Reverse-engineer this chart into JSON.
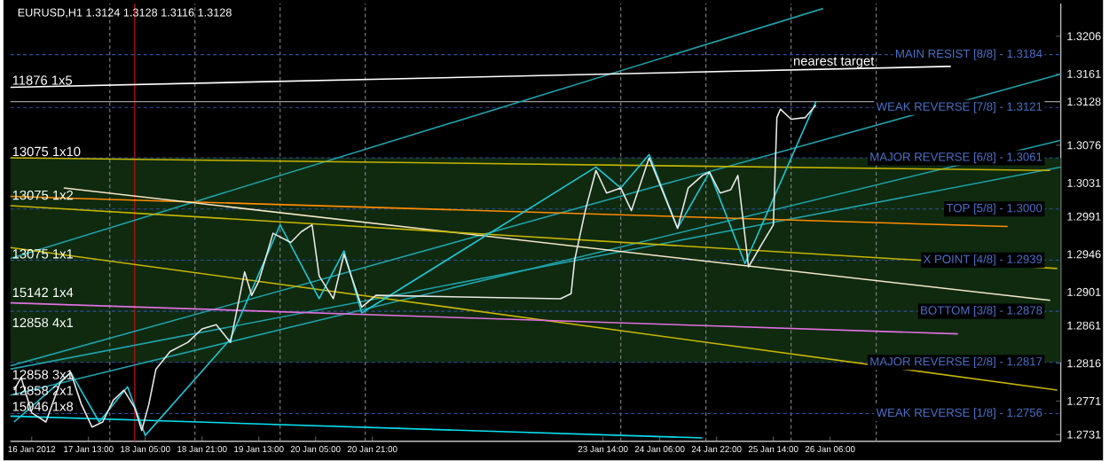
{
  "chart_data": {
    "type": "line",
    "title": "EURUSD,H1  1.3124 1.3128 1.3116 1.3128",
    "xlim": [
      "2012-01-16T15:00",
      "2012-01-28T23:00"
    ],
    "ylim": [
      1.2723,
      1.3245
    ],
    "xticks": [
      {
        "value": "2012-01-16T21:00",
        "label": "16 Jan 2012"
      },
      {
        "value": "2012-01-17T13:00",
        "label": "17 Jan 13:00"
      },
      {
        "value": "2012-01-18T05:00",
        "label": "18 Jan 05:00"
      },
      {
        "value": "2012-01-18T21:00",
        "label": "18 Jan 21:00"
      },
      {
        "value": "2012-01-19T13:00",
        "label": "19 Jan 13:00"
      },
      {
        "value": "2012-01-20T05:00",
        "label": "20 Jan 05:00"
      },
      {
        "value": "2012-01-20T21:00",
        "label": "20 Jan 21:00"
      },
      {
        "value": "2012-01-23T14:00",
        "label": "23 Jan 14:00"
      },
      {
        "value": "2012-01-24T06:00",
        "label": "24 Jan 06:00"
      },
      {
        "value": "2012-01-24T22:00",
        "label": "24 Jan 22:00"
      },
      {
        "value": "2012-01-25T14:00",
        "label": "25 Jan 14:00"
      },
      {
        "value": "2012-01-26T06:00",
        "label": "26 Jan 06:00"
      }
    ],
    "yticks": [
      1.3206,
      1.3161,
      1.3128,
      1.3076,
      1.3031,
      1.2991,
      1.2946,
      1.2901,
      1.2861,
      1.2816,
      1.2771,
      1.2731
    ],
    "bands": [
      {
        "axis": "y",
        "from": 1.2817,
        "to": 1.3061,
        "color": "#0f2a0f"
      }
    ],
    "ref_lines": [
      {
        "axis": "x",
        "value": "2012-01-17T19:00",
        "color": "#8c8c8c",
        "line_style": "dashed"
      },
      {
        "axis": "x",
        "value": "2012-01-18T19:00",
        "color": "#8c8c8c",
        "line_style": "dashed"
      },
      {
        "axis": "x",
        "value": "2012-01-19T19:00",
        "color": "#8c8c8c",
        "line_style": "dashed"
      },
      {
        "axis": "x",
        "value": "2012-01-20T19:00",
        "color": "#8c8c8c",
        "line_style": "dashed"
      },
      {
        "axis": "x",
        "value": "2012-01-23T19:00",
        "color": "#8c8c8c",
        "line_style": "dashed"
      },
      {
        "axis": "x",
        "value": "2012-01-24T19:00",
        "color": "#8c8c8c",
        "line_style": "dashed"
      },
      {
        "axis": "x",
        "value": "2012-01-25T19:00",
        "color": "#8c8c8c",
        "line_style": "dashed"
      },
      {
        "axis": "x",
        "value": "2012-01-26T19:00",
        "color": "#8c8c8c",
        "line_style": "dashed"
      },
      {
        "axis": "x",
        "value": "2012-01-18T02:00",
        "color": "#d01010",
        "line_style": "solid"
      },
      {
        "axis": "y",
        "value": 1.3128,
        "color": "#9a9a9a",
        "line_style": "solid"
      },
      {
        "axis": "y",
        "value": 1.3184,
        "label": "MAIN RESIST  [8/8] - 1.3184",
        "color": "#2f4f9f",
        "line_style": "dashed"
      },
      {
        "axis": "y",
        "value": 1.3121,
        "label": "WEAK REVERSE  [7/8] - 1.3121",
        "color": "#2f4f9f",
        "line_style": "dashed"
      },
      {
        "axis": "y",
        "value": 1.3061,
        "label": "MAJOR REVERSE  [6/8] - 1.3061",
        "color": "#2f4f9f",
        "line_style": "dashed"
      },
      {
        "axis": "y",
        "value": 1.3,
        "label": "TOP  [5/8] - 1.3000",
        "color": "#2f4f9f",
        "line_style": "dashed"
      },
      {
        "axis": "y",
        "value": 1.2939,
        "label": "X POINT  [4/8] - 1.2939",
        "color": "#2f4f9f",
        "line_style": "dashed"
      },
      {
        "axis": "y",
        "value": 1.2878,
        "label": "BOTTOM  [3/8] - 1.2878",
        "color": "#2f4f9f",
        "line_style": "dashed"
      },
      {
        "axis": "y",
        "value": 1.2817,
        "label": "MAJOR REVERSE  [2/8] - 1.2817",
        "color": "#2f4f9f",
        "line_style": "dashed"
      },
      {
        "axis": "y",
        "value": 1.2756,
        "label": "WEAK REVERSE  [1/8] - 1.2756",
        "color": "#2f4f9f",
        "line_style": "dashed"
      }
    ],
    "series": [
      {
        "color": "#1fa0a8",
        "x": [
          "2012-01-16T15:00",
          "2012-01-26T04:00"
        ],
        "values": [
          1.2941,
          1.3239
        ]
      },
      {
        "color": "#1fa0a8",
        "x": [
          "2012-01-16T15:00",
          "2012-01-28T23:00"
        ],
        "values": [
          1.2813,
          1.3161
        ]
      },
      {
        "color": "#1fa0a8",
        "x": [
          "2012-01-16T15:00",
          "2012-01-28T23:00"
        ],
        "values": [
          1.2778,
          1.3082
        ]
      },
      {
        "color": "#1fa0a8",
        "x": [
          "2012-01-16T15:00",
          "2012-01-28T23:00"
        ],
        "values": [
          1.2809,
          1.305
        ]
      },
      {
        "color": "#ffffff",
        "x": [
          "2012-01-16T15:00",
          "2012-01-27T16:00"
        ],
        "values": [
          1.3145,
          1.317
        ]
      },
      {
        "color": "#c8b400",
        "x": [
          "2012-01-16T15:00",
          "2012-01-28T20:00"
        ],
        "values": [
          1.3061,
          1.3046
        ]
      },
      {
        "color": "#ff8c00",
        "x": [
          "2012-01-16T15:00",
          "2012-01-28T08:00"
        ],
        "values": [
          1.3015,
          1.2979
        ]
      },
      {
        "color": "#f5e6c8",
        "x": [
          "2012-01-17T06:00",
          "2012-01-28T20:00"
        ],
        "values": [
          1.3025,
          1.2891
        ]
      },
      {
        "color": "#c8b400",
        "x": [
          "2012-01-16T15:00",
          "2012-01-28T22:00"
        ],
        "values": [
          1.2954,
          1.2784
        ]
      },
      {
        "color": "#c8b400",
        "x": [
          "2012-01-16T15:00",
          "2012-01-28T22:00"
        ],
        "values": [
          1.3004,
          1.2929
        ]
      },
      {
        "color": "#e070e0",
        "x": [
          "2012-01-16T15:00",
          "2012-01-27T18:00"
        ],
        "values": [
          1.2888,
          1.2851
        ]
      },
      {
        "color": "#00e0f0",
        "x": [
          "2012-01-16T15:00",
          "2012-01-24T18:00"
        ],
        "values": [
          1.2753,
          1.2727
        ]
      },
      {
        "color": "#20c8d8",
        "x": [
          "2012-01-16T16:00",
          "2012-01-17T08:00",
          "2012-01-17T16:00",
          "2012-01-18T00:00",
          "2012-01-18T05:00",
          "2012-01-19T05:00",
          "2012-01-19T19:00",
          "2012-01-20T06:00",
          "2012-01-20T13:00",
          "2012-01-20T18:00",
          "2012-01-23T12:00",
          "2012-01-23T19:00",
          "2012-01-24T03:00",
          "2012-01-24T11:00",
          "2012-01-24T20:00",
          "2012-01-25T06:00",
          "2012-01-26T02:00"
        ],
        "values": [
          1.2746,
          1.2805,
          1.2746,
          1.2788,
          1.273,
          1.2845,
          1.2981,
          1.2893,
          1.295,
          1.2876,
          1.305,
          1.3025,
          1.3065,
          1.2977,
          1.3044,
          1.2935,
          1.3128
        ]
      },
      {
        "color": "#e8e8e8",
        "x": [
          "2012-01-16T16:00",
          "2012-01-16T18:00",
          "2012-01-16T21:00",
          "2012-01-17T01:00",
          "2012-01-17T05:00",
          "2012-01-17T08:00",
          "2012-01-17T11:00",
          "2012-01-17T14:00",
          "2012-01-17T17:00",
          "2012-01-17T20:00",
          "2012-01-17T23:00",
          "2012-01-18T02:00",
          "2012-01-18T04:00",
          "2012-01-18T06:00",
          "2012-01-18T08:00",
          "2012-01-18T12:00",
          "2012-01-18T17:00",
          "2012-01-18T21:00",
          "2012-01-19T01:00",
          "2012-01-19T05:00",
          "2012-01-19T09:00",
          "2012-01-19T11:00",
          "2012-01-19T13:00",
          "2012-01-19T17:00",
          "2012-01-19T22:00",
          "2012-01-20T01:00",
          "2012-01-20T04:00",
          "2012-01-20T06:00",
          "2012-01-20T10:00",
          "2012-01-20T13:00",
          "2012-01-20T18:00",
          "2012-01-20T22:00",
          "2012-01-23T02:00",
          "2012-01-23T05:00",
          "2012-01-23T06:00",
          "2012-01-23T09:00",
          "2012-01-23T12:00",
          "2012-01-23T15:00",
          "2012-01-23T19:00",
          "2012-01-23T22:00",
          "2012-01-24T03:00",
          "2012-01-24T09:00",
          "2012-01-24T11:00",
          "2012-01-24T14:00",
          "2012-01-24T18:00",
          "2012-01-24T20:00",
          "2012-01-24T23:00",
          "2012-01-25T02:00",
          "2012-01-25T04:00",
          "2012-01-25T07:00",
          "2012-01-25T11:00",
          "2012-01-25T14:00",
          "2012-01-25T15:00",
          "2012-01-25T16:00",
          "2012-01-25T19:00",
          "2012-01-25T23:00",
          "2012-01-26T02:00"
        ],
        "values": [
          1.2784,
          1.2799,
          1.2757,
          1.2746,
          1.2793,
          1.2805,
          1.2767,
          1.274,
          1.2746,
          1.2772,
          1.2784,
          1.2763,
          1.2736,
          1.2767,
          1.2809,
          1.283,
          1.2841,
          1.2857,
          1.2862,
          1.2841,
          1.2925,
          1.2897,
          1.2914,
          1.2971,
          1.296,
          1.2973,
          1.2981,
          1.292,
          1.2893,
          1.2946,
          1.2883,
          1.2897,
          1.2893,
          1.2899,
          1.2939,
          1.2998,
          1.3046,
          1.3019,
          1.3025,
          1.2998,
          1.3061,
          1.2998,
          1.2977,
          1.3025,
          1.304,
          1.3044,
          1.3019,
          1.3023,
          1.304,
          1.2931,
          1.296,
          1.2981,
          1.3109,
          1.3119,
          1.3107,
          1.3109,
          1.3124
        ]
      }
    ],
    "annotations": [
      {
        "text": "nearest target",
        "x": "2012-01-26T07:00",
        "y": 1.3166
      },
      {
        "text": "11876 1x5",
        "x": "2012-01-16T15:00",
        "y": 1.3146
      },
      {
        "text": "13075 1x10",
        "x": "2012-01-16T15:00",
        "y": 1.3061
      },
      {
        "text": "13075 1x2",
        "x": "2012-01-16T15:00",
        "y": 1.3009
      },
      {
        "text": "13075 1x1",
        "x": "2012-01-16T15:00",
        "y": 1.2939
      },
      {
        "text": "15142 1x4",
        "x": "2012-01-16T15:00",
        "y": 1.2893
      },
      {
        "text": "12858 4x1",
        "x": "2012-01-16T15:00",
        "y": 1.2857
      },
      {
        "text": "12858 3x1",
        "x": "2012-01-16T15:00",
        "y": 1.2795
      },
      {
        "text": "12858 2x1",
        "x": "2012-01-16T15:00",
        "y": 1.2776
      },
      {
        "text": "15046 1x8",
        "x": "2012-01-16T15:00",
        "y": 1.2757
      }
    ]
  }
}
